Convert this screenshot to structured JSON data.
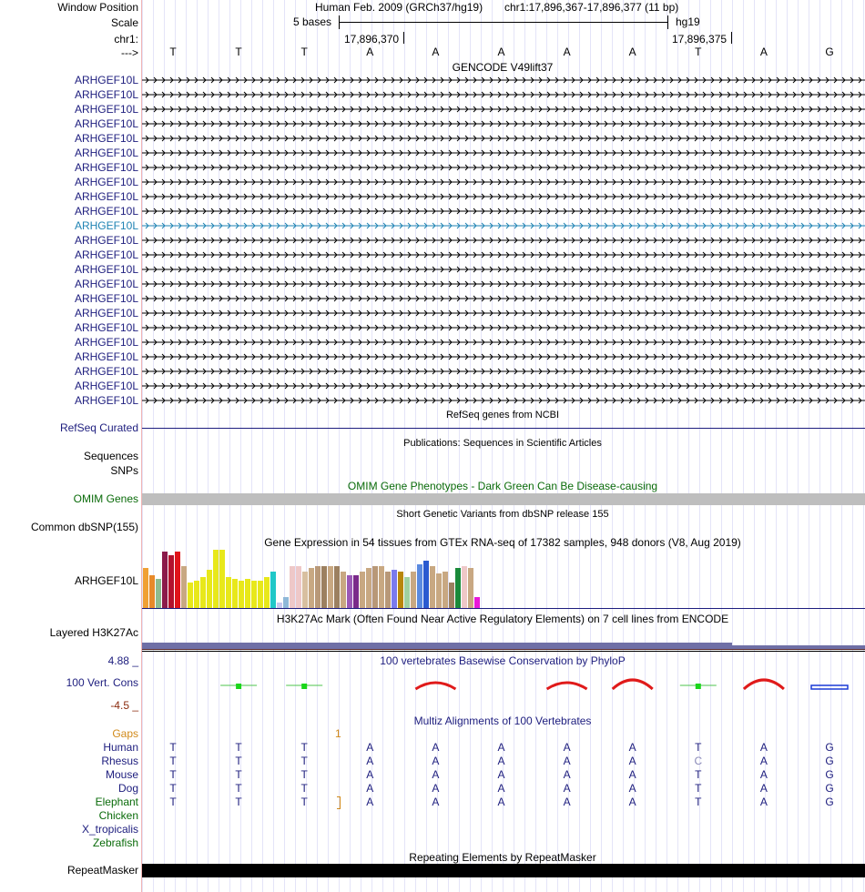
{
  "header": {
    "window_position_label": "Window Position",
    "scale_label": "Scale",
    "chrom_label": "chr1:",
    "strand_label": "--->",
    "assembly": "Human Feb. 2009 (GRCh37/hg19)",
    "position": "chr1:17,896,367-17,896,377 (11 bp)",
    "scale_text": "5 bases",
    "db": "hg19",
    "coord_left": "17,896,370",
    "coord_right": "17,896,375"
  },
  "bases": [
    "T",
    "T",
    "T",
    "A",
    "A",
    "A",
    "A",
    "A",
    "T",
    "A",
    "G"
  ],
  "gencode": {
    "title": "GENCODE V49lift37",
    "gene_label": "ARHGEF10L",
    "transcript_count": 23,
    "highlight_row": 10,
    "color": "#1d1d7e",
    "highlight_color": "#1f83b3"
  },
  "refseq": {
    "label": "RefSeq Curated",
    "title": "RefSeq genes from NCBI"
  },
  "publications": {
    "title": "Publications: Sequences in Scientific Articles",
    "label": "Sequences"
  },
  "snps_label": "SNPs",
  "omim": {
    "label": "OMIM Genes",
    "title": "OMIM Gene Phenotypes - Dark Green Can Be Disease-causing",
    "color": "#0a6b0a"
  },
  "dbsnp": {
    "label": "Common dbSNP(155)",
    "title": "Short Genetic Variants from dbSNP release 155"
  },
  "gtex": {
    "label": "ARHGEF10L",
    "title": "Gene Expression in 54 tissues from GTEx RNA-seq of 17382 samples, 948 donors (V8, Aug 2019)"
  },
  "h3k27ac": {
    "label": "Layered H3K27Ac",
    "title": "H3K27Ac Mark (Often Found Near Active Regulatory Elements) on 7 cell lines from ENCODE"
  },
  "phylop": {
    "label": "100 Vert. Cons",
    "title": "100 vertebrates Basewise Conservation by PhyloP",
    "max": "4.88 _",
    "min": "-4.5 _"
  },
  "multiz": {
    "title": "Multiz Alignments of 100 Vertebrates",
    "gaps_label": "Gaps",
    "gap_mark": "1",
    "species": [
      {
        "name": "Human",
        "seq": [
          "T",
          "T",
          "T",
          "A",
          "A",
          "A",
          "A",
          "A",
          "T",
          "A",
          "G"
        ]
      },
      {
        "name": "Rhesus",
        "seq": [
          "T",
          "T",
          "T",
          "A",
          "A",
          "A",
          "A",
          "A",
          "C",
          "A",
          "G"
        ]
      },
      {
        "name": "Mouse",
        "seq": [
          "T",
          "T",
          "T",
          "A",
          "A",
          "A",
          "A",
          "A",
          "T",
          "A",
          "G"
        ]
      },
      {
        "name": "Dog",
        "seq": [
          "T",
          "T",
          "T",
          "A",
          "A",
          "A",
          "A",
          "A",
          "T",
          "A",
          "G"
        ]
      },
      {
        "name": "Elephant",
        "seq": [
          "T",
          "T",
          "T",
          "A",
          "A",
          "A",
          "A",
          "A",
          "T",
          "A",
          "G"
        ]
      },
      {
        "name": "Chicken",
        "seq": []
      },
      {
        "name": "X_tropicalis",
        "seq": []
      },
      {
        "name": "Zebrafish",
        "seq": []
      }
    ]
  },
  "repeatmasker": {
    "label": "RepeatMasker",
    "title": "Repeating Elements by RepeatMasker"
  }
}
